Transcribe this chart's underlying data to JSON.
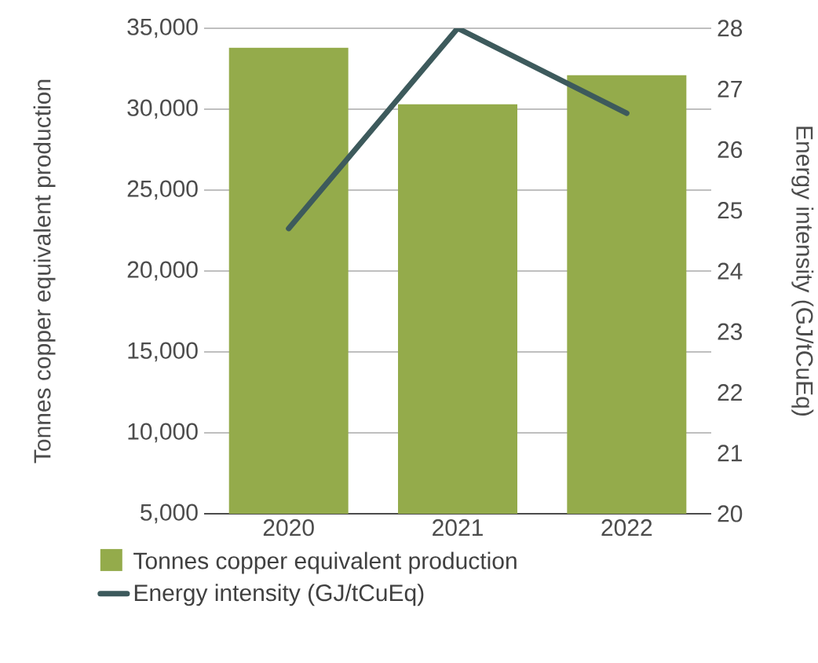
{
  "chart_data": {
    "type": "bar",
    "categories": [
      "2020",
      "2021",
      "2022"
    ],
    "series": [
      {
        "name": "Tonnes copper equivalent production",
        "color": "#94ab4b",
        "values": [
          33800,
          30300,
          32100
        ]
      },
      {
        "name": "Energy intensity (GJ/tCuEq)",
        "type": "line",
        "axis": "y2",
        "color": "#3d5a5c",
        "values": [
          24.7,
          28.0,
          26.6
        ]
      }
    ],
    "ylabel": "Tonnes copper equivalent production",
    "y2label": "Energy intensity (GJ/tCuEq)",
    "ylim": [
      5000,
      35000
    ],
    "yticks": [
      {
        "value": 5000,
        "label": "5,000"
      },
      {
        "value": 10000,
        "label": "10,000"
      },
      {
        "value": 15000,
        "label": "15,000"
      },
      {
        "value": 20000,
        "label": "20,000"
      },
      {
        "value": 25000,
        "label": "25,000"
      },
      {
        "value": 30000,
        "label": "30,000"
      },
      {
        "value": 35000,
        "label": "35,000"
      }
    ],
    "y2lim": [
      20,
      28
    ],
    "y2ticks": [
      20,
      21,
      22,
      23,
      24,
      25,
      26,
      27,
      28
    ],
    "grid": "y",
    "legend": "bottom"
  }
}
